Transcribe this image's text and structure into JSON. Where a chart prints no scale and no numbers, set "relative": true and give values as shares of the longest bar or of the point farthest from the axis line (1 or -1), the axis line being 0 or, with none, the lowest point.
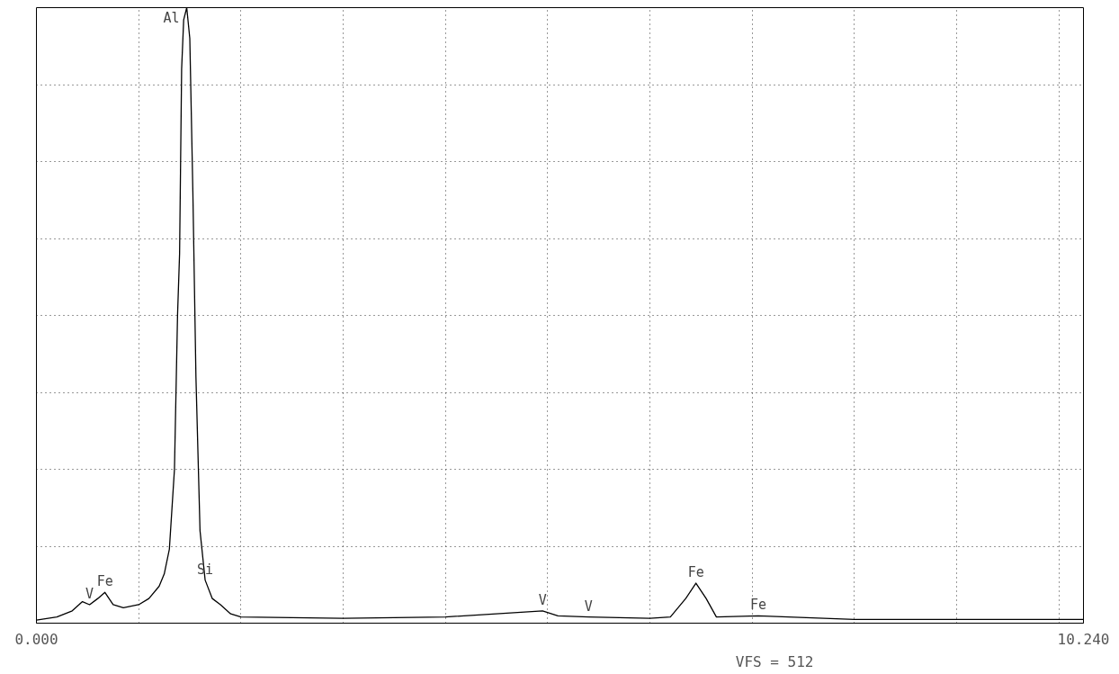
{
  "chart_data": {
    "type": "line",
    "relative": true,
    "x": [
      0,
      0.2,
      0.35,
      0.45,
      0.52,
      0.6,
      0.67,
      0.75,
      0.85,
      1.0,
      1.1,
      1.2,
      1.25,
      1.3,
      1.35,
      1.38,
      1.4,
      1.42,
      1.44,
      1.47,
      1.5,
      1.53,
      1.56,
      1.6,
      1.65,
      1.72,
      1.8,
      1.9,
      2.0,
      3.0,
      4.0,
      4.95,
      5.1,
      5.4,
      6.0,
      6.2,
      6.35,
      6.45,
      6.55,
      6.65,
      7.06,
      8.0,
      10.24
    ],
    "series": [
      {
        "color": "#000000",
        "values": [
          0.005,
          0.01,
          0.02,
          0.035,
          0.03,
          0.04,
          0.05,
          0.03,
          0.025,
          0.03,
          0.04,
          0.06,
          0.08,
          0.12,
          0.25,
          0.5,
          0.6,
          0.9,
          0.98,
          1.0,
          0.95,
          0.7,
          0.4,
          0.15,
          0.07,
          0.04,
          0.03,
          0.015,
          0.01,
          0.008,
          0.01,
          0.02,
          0.012,
          0.01,
          0.008,
          0.01,
          0.04,
          0.065,
          0.04,
          0.01,
          0.012,
          0.006,
          0.006
        ]
      }
    ],
    "xlim": [
      0,
      10.24
    ],
    "xticks": [
      {
        "value": 0,
        "label": "0.000"
      },
      {
        "value": 1,
        "label": null
      },
      {
        "value": 2,
        "label": null
      },
      {
        "value": 3,
        "label": null
      },
      {
        "value": 4,
        "label": null
      },
      {
        "value": 5,
        "label": null
      },
      {
        "value": 6,
        "label": null
      },
      {
        "value": 7,
        "label": null
      },
      {
        "value": 8,
        "label": null
      },
      {
        "value": 9,
        "label": null
      },
      {
        "value": 10,
        "label": null
      },
      {
        "value": 10.24,
        "label": "10.240"
      }
    ],
    "grid": true,
    "line_style": "solid",
    "annotations": [
      {
        "text": "V",
        "x": 0.52,
        "y": 0.03
      },
      {
        "text": "Fe",
        "x": 0.67,
        "y": 0.05
      },
      {
        "text": "Al",
        "x": 1.47,
        "y": 1.0
      },
      {
        "text": "Si",
        "x": 1.65,
        "y": 0.07
      },
      {
        "text": "V",
        "x": 4.95,
        "y": 0.02
      },
      {
        "text": "V",
        "x": 5.4,
        "y": 0.01
      },
      {
        "text": "Fe",
        "x": 6.45,
        "y": 0.065
      },
      {
        "text": "Fe",
        "x": 7.06,
        "y": 0.012
      },
      "VFS = 512"
    ]
  }
}
